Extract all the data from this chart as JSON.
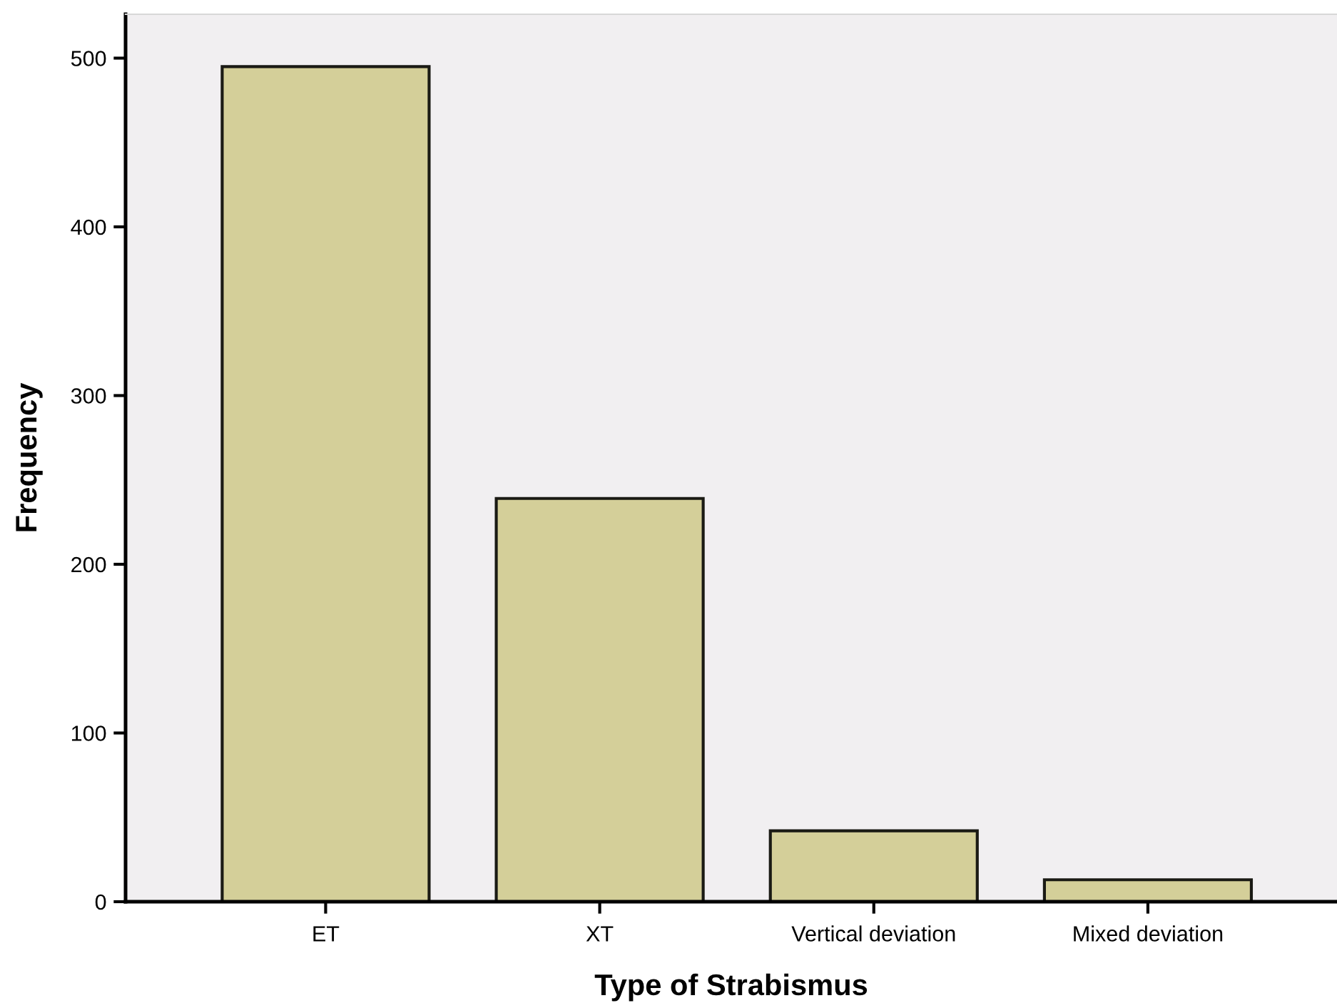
{
  "chart_data": {
    "type": "bar",
    "xlabel": "Type of Strabismus",
    "ylabel": "Frequency",
    "categories": [
      "ET",
      "XT",
      "Vertical deviation",
      "Mixed deviation"
    ],
    "values": [
      495,
      239,
      42,
      13
    ],
    "color": "#d4cf99",
    "ylim": [
      0,
      526
    ],
    "yticks": [
      0,
      100,
      200,
      300,
      400,
      500
    ],
    "grid": false
  }
}
